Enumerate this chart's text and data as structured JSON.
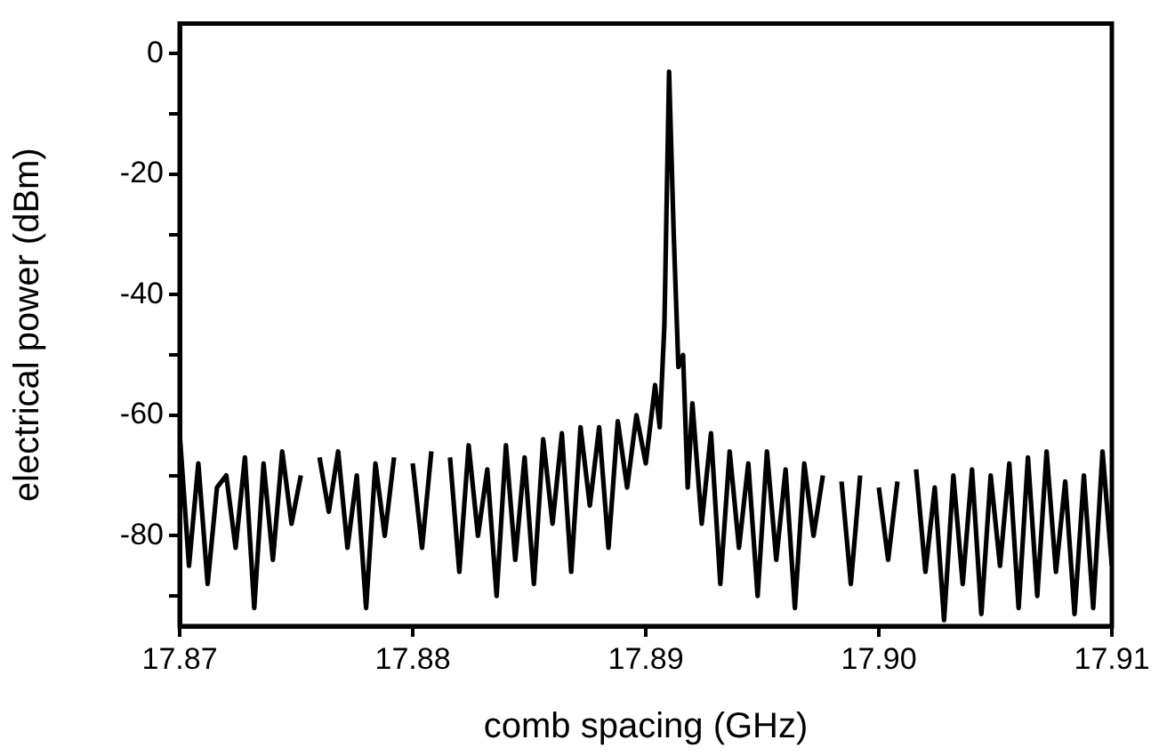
{
  "chart_data": {
    "type": "line",
    "xlabel": "comb spacing (GHz)",
    "ylabel": "electrical power (dBm)",
    "xlim": [
      17.87,
      17.91
    ],
    "xticks": [
      17.87,
      17.88,
      17.89,
      {
        "value": 17.9,
        "label": "17.90"
      },
      17.91
    ],
    "ylim": [
      -95,
      5
    ],
    "yticks": [
      {
        "value": -90,
        "label": null
      },
      -80,
      {
        "value": -70,
        "label": null
      },
      -60,
      {
        "value": -50,
        "label": null
      },
      -40,
      {
        "value": -30,
        "label": null
      },
      -20,
      {
        "value": -10,
        "label": null
      },
      0
    ],
    "grid": false,
    "legend": false,
    "marker": "none",
    "line_style": "solid",
    "series": [
      {
        "color": "#000000",
        "x": [
          17.87,
          17.8704,
          17.8708,
          17.8712,
          17.8716,
          17.872,
          17.8724,
          17.8728,
          17.8732,
          17.8736,
          17.874,
          17.8744,
          17.8748,
          17.8752,
          17.8756,
          17.876,
          17.8764,
          17.8768,
          17.8772,
          17.8776,
          17.878,
          17.8784,
          17.8788,
          17.8792,
          17.8796,
          17.88,
          17.8804,
          17.8808,
          17.8812,
          17.8816,
          17.882,
          17.8824,
          17.8828,
          17.8832,
          17.8836,
          17.884,
          17.8844,
          17.8848,
          17.8852,
          17.8856,
          17.886,
          17.8864,
          17.8868,
          17.8872,
          17.8876,
          17.888,
          17.8884,
          17.8888,
          17.8892,
          17.8896,
          17.89,
          17.8904,
          17.8906,
          17.8908,
          17.891,
          17.8912,
          17.8914,
          17.8916,
          17.8918,
          17.892,
          17.8924,
          17.8928,
          17.8932,
          17.8936,
          17.894,
          17.8944,
          17.8948,
          17.8952,
          17.8956,
          17.896,
          17.8964,
          17.8968,
          17.8972,
          17.8976,
          17.898,
          17.8984,
          17.8988,
          17.8992,
          17.8996,
          17.9,
          17.9004,
          17.9008,
          17.9012,
          17.9016,
          17.902,
          17.9024,
          17.9028,
          17.9032,
          17.9036,
          17.904,
          17.9044,
          17.9048,
          17.9052,
          17.9056,
          17.906,
          17.9064,
          17.9068,
          17.9072,
          17.9076,
          17.908,
          17.9084,
          17.9088,
          17.9092,
          17.9096,
          17.91
        ],
        "values": [
          -63,
          -85,
          -68,
          -88,
          -72,
          -70,
          -82,
          -67,
          -92,
          -68,
          -84,
          -66,
          -78,
          -70,
          null,
          -67,
          -76,
          -66,
          -82,
          -70,
          -92,
          -68,
          -80,
          -67,
          null,
          -68,
          -82,
          -66,
          null,
          -67,
          -86,
          -65,
          -80,
          -69,
          -90,
          -65,
          -84,
          -67,
          -88,
          -64,
          -78,
          -63,
          -86,
          -62,
          -75,
          -62,
          -82,
          -61,
          -72,
          -60,
          -68,
          -55,
          -62,
          -45,
          -3,
          -30,
          -52,
          -50,
          -72,
          -58,
          -78,
          -63,
          -88,
          -66,
          -82,
          -68,
          -90,
          -66,
          -84,
          -69,
          -92,
          -68,
          -80,
          -70,
          null,
          -71,
          -88,
          -70,
          null,
          -72,
          -84,
          -71,
          null,
          -69,
          -86,
          -72,
          -94,
          -70,
          -88,
          -69,
          -93,
          -70,
          -85,
          -68,
          -92,
          -67,
          -90,
          -66,
          -86,
          -71,
          -93,
          -70,
          -92,
          -66,
          -85
        ]
      }
    ]
  }
}
